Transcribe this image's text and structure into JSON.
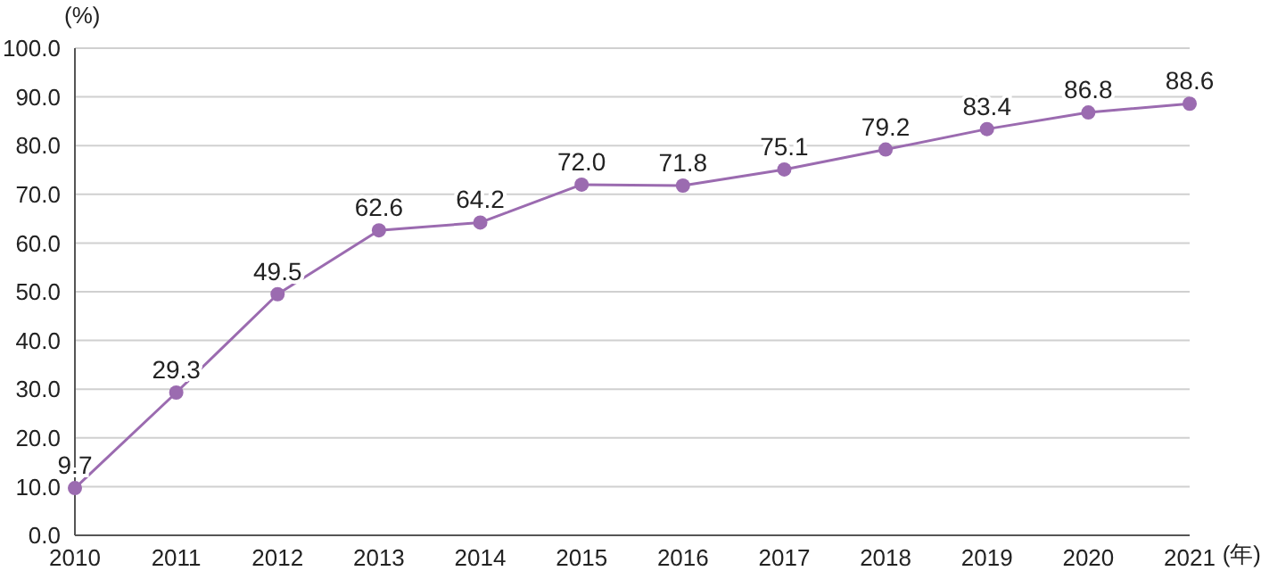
{
  "chart_data": {
    "type": "line",
    "ylabel": "(%)",
    "xlabel": "(年)",
    "categories": [
      "2010",
      "2011",
      "2012",
      "2013",
      "2014",
      "2015",
      "2016",
      "2017",
      "2018",
      "2019",
      "2020",
      "2021"
    ],
    "series": [
      {
        "color": "#9b6bb0",
        "values": [
          9.7,
          29.3,
          49.5,
          62.6,
          64.2,
          72.0,
          71.8,
          75.1,
          79.2,
          83.4,
          86.8,
          88.6
        ],
        "value_labels": [
          "9.7",
          "29.3",
          "49.5",
          "62.6",
          "64.2",
          "72.0",
          "71.8",
          "75.1",
          "79.2",
          "83.4",
          "86.8",
          "88.6"
        ]
      }
    ],
    "ylim": [
      0,
      100
    ],
    "yticks": [
      {
        "value": 0,
        "label": "0.0"
      },
      {
        "value": 10,
        "label": "10.0"
      },
      {
        "value": 20,
        "label": "20.0"
      },
      {
        "value": 30,
        "label": "30.0"
      },
      {
        "value": 40,
        "label": "40.0"
      },
      {
        "value": 50,
        "label": "50.0"
      },
      {
        "value": 60,
        "label": "60.0"
      },
      {
        "value": 70,
        "label": "70.0"
      },
      {
        "value": 80,
        "label": "80.0"
      },
      {
        "value": 90,
        "label": "90.0"
      },
      {
        "value": 100,
        "label": "100.0"
      }
    ],
    "grid": "y",
    "marker": "circle",
    "line_style": "solid",
    "legend": false
  }
}
